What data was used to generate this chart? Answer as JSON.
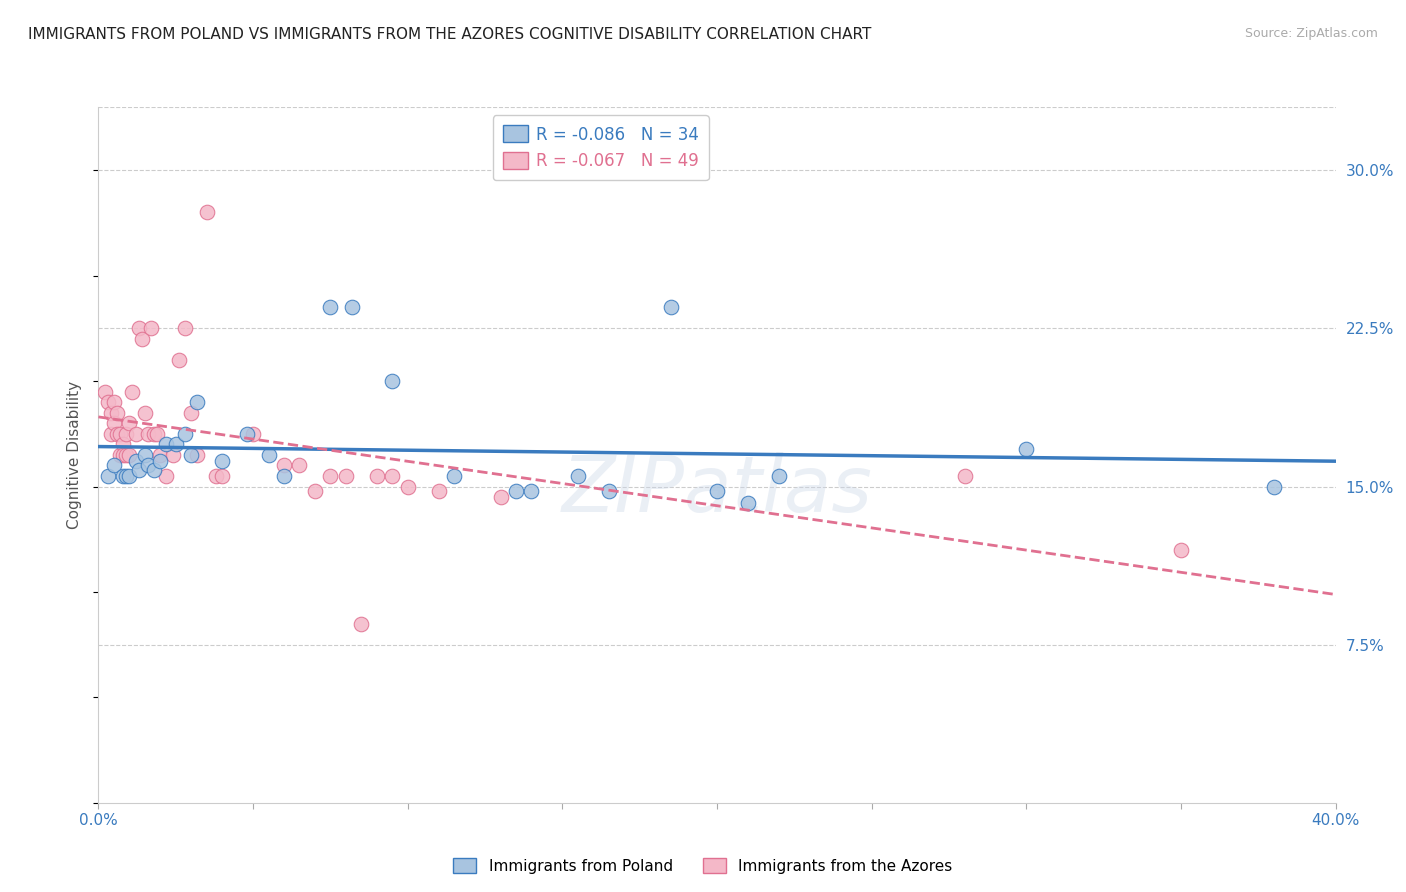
{
  "title": "IMMIGRANTS FROM POLAND VS IMMIGRANTS FROM THE AZORES COGNITIVE DISABILITY CORRELATION CHART",
  "source": "Source: ZipAtlas.com",
  "ylabel": "Cognitive Disability",
  "ytick_labels": [
    "7.5%",
    "15.0%",
    "22.5%",
    "30.0%"
  ],
  "ytick_values": [
    0.075,
    0.15,
    0.225,
    0.3
  ],
  "xlim": [
    0.0,
    0.4
  ],
  "ylim": [
    0.0,
    0.33
  ],
  "legend_entry1": "R = -0.086   N = 34",
  "legend_entry2": "R = -0.067   N = 49",
  "legend_label1": "Immigrants from Poland",
  "legend_label2": "Immigrants from the Azores",
  "poland_color": "#a8c4e0",
  "azores_color": "#f4b8c8",
  "poland_line_color": "#3a7bbf",
  "azores_line_color": "#e07090",
  "background_color": "#ffffff",
  "watermark": "ZIPatlas",
  "poland_x": [
    0.003,
    0.005,
    0.008,
    0.009,
    0.01,
    0.012,
    0.013,
    0.015,
    0.016,
    0.018,
    0.02,
    0.022,
    0.025,
    0.028,
    0.03,
    0.032,
    0.04,
    0.048,
    0.055,
    0.06,
    0.075,
    0.082,
    0.095,
    0.115,
    0.135,
    0.14,
    0.155,
    0.165,
    0.185,
    0.2,
    0.21,
    0.22,
    0.3,
    0.38
  ],
  "poland_y": [
    0.155,
    0.16,
    0.155,
    0.155,
    0.155,
    0.162,
    0.158,
    0.165,
    0.16,
    0.158,
    0.162,
    0.17,
    0.17,
    0.175,
    0.165,
    0.19,
    0.162,
    0.175,
    0.165,
    0.155,
    0.235,
    0.235,
    0.2,
    0.155,
    0.148,
    0.148,
    0.155,
    0.148,
    0.235,
    0.148,
    0.142,
    0.155,
    0.168,
    0.15
  ],
  "azores_x": [
    0.002,
    0.003,
    0.004,
    0.004,
    0.005,
    0.005,
    0.006,
    0.006,
    0.007,
    0.007,
    0.008,
    0.008,
    0.009,
    0.009,
    0.01,
    0.01,
    0.011,
    0.012,
    0.013,
    0.014,
    0.015,
    0.016,
    0.017,
    0.018,
    0.019,
    0.02,
    0.022,
    0.024,
    0.026,
    0.028,
    0.03,
    0.032,
    0.035,
    0.038,
    0.04,
    0.05,
    0.06,
    0.065,
    0.07,
    0.075,
    0.08,
    0.085,
    0.09,
    0.095,
    0.1,
    0.11,
    0.13,
    0.28,
    0.35
  ],
  "azores_y": [
    0.195,
    0.19,
    0.185,
    0.175,
    0.19,
    0.18,
    0.185,
    0.175,
    0.175,
    0.165,
    0.17,
    0.165,
    0.175,
    0.165,
    0.165,
    0.18,
    0.195,
    0.175,
    0.225,
    0.22,
    0.185,
    0.175,
    0.225,
    0.175,
    0.175,
    0.165,
    0.155,
    0.165,
    0.21,
    0.225,
    0.185,
    0.165,
    0.28,
    0.155,
    0.155,
    0.175,
    0.16,
    0.16,
    0.148,
    0.155,
    0.155,
    0.085,
    0.155,
    0.155,
    0.15,
    0.148,
    0.145,
    0.155,
    0.12
  ]
}
